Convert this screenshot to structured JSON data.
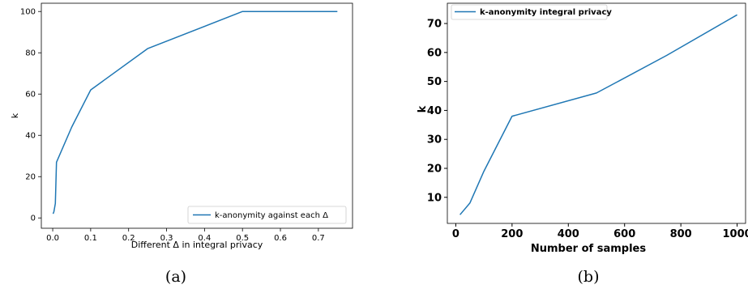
{
  "chart_data": [
    {
      "type": "line",
      "caption": "(a)",
      "xlabel": "Different Δ in integral privacy",
      "ylabel": "k",
      "xlim": [
        -0.03,
        0.79
      ],
      "ylim": [
        -5,
        104
      ],
      "xticks": [
        0.0,
        0.1,
        0.2,
        0.3,
        0.4,
        0.5,
        0.6,
        0.7
      ],
      "xtick_labels": [
        "0.0",
        "0.1",
        "0.2",
        "0.3",
        "0.4",
        "0.5",
        "0.6",
        "0.7"
      ],
      "yticks": [
        0,
        20,
        40,
        60,
        80,
        100
      ],
      "ytick_labels": [
        "0",
        "20",
        "40",
        "60",
        "80",
        "100"
      ],
      "legend_position": "lower-right",
      "color": "#1f77b4",
      "series": [
        {
          "name": "k-anonymity against each Δ",
          "x": [
            0.001,
            0.003,
            0.005,
            0.007,
            0.01,
            0.05,
            0.1,
            0.25,
            0.5,
            0.75
          ],
          "y": [
            2,
            3,
            5,
            7,
            27,
            44,
            62,
            82,
            100,
            100
          ]
        }
      ]
    },
    {
      "type": "line",
      "caption": "(b)",
      "xlabel": "Number of samples",
      "ylabel": "k",
      "xlim": [
        -30,
        1030
      ],
      "ylim": [
        1,
        77
      ],
      "xticks": [
        0,
        200,
        400,
        600,
        800,
        1000
      ],
      "xtick_labels": [
        "0",
        "200",
        "400",
        "600",
        "800",
        "1000"
      ],
      "yticks": [
        10,
        20,
        30,
        40,
        50,
        60,
        70
      ],
      "ytick_labels": [
        "10",
        "20",
        "30",
        "40",
        "50",
        "60",
        "70"
      ],
      "legend_position": "top-left",
      "color": "#1f77b4",
      "series": [
        {
          "name": "k-anonymity integral privacy",
          "x": [
            15,
            50,
            100,
            200,
            500,
            750,
            1000
          ],
          "y": [
            4,
            8,
            19,
            38,
            46,
            59,
            73
          ]
        }
      ]
    }
  ]
}
